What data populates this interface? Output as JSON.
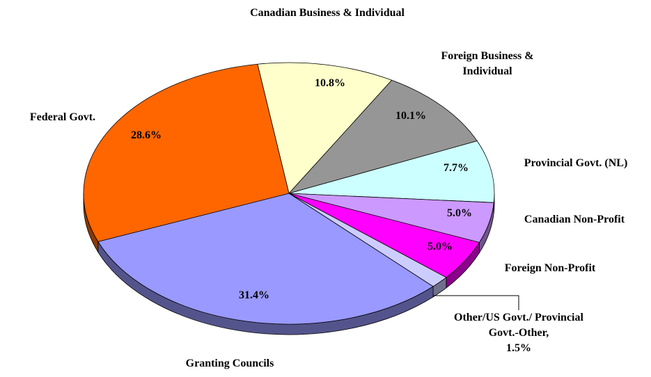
{
  "chart_data": {
    "type": "pie3d",
    "categories": [
      "Canadian Business & Individual",
      "Foreign Business & Individual",
      "Provincial Govt. (NL)",
      "Canadian Non-Profit",
      "Foreign Non-Profit",
      "Other/US Govt./ Provincial Govt.-Other,",
      "Granting Councils",
      "Federal Govt."
    ],
    "values": [
      10.8,
      10.1,
      7.7,
      5.0,
      5.0,
      1.5,
      31.4,
      28.6
    ],
    "value_labels": [
      "10.8%",
      "10.1%",
      "7.7%",
      "5.0%",
      "5.0%",
      "1.5%",
      "31.4%",
      "28.6%"
    ],
    "colors": [
      "#ffffcc",
      "#969696",
      "#ccffff",
      "#cc99ff",
      "#ff00ff",
      "#ccccff",
      "#9999ff",
      "#ff6600"
    ]
  }
}
